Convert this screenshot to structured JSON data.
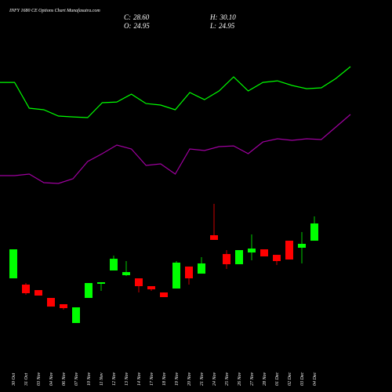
{
  "chart_data": {
    "type": "candlestick",
    "title": "INFY 1680 CE Options Chart Munafasutra.com",
    "readout": [
      {
        "key": "C:",
        "value": 28.6,
        "value_label": "28.60"
      },
      {
        "key": "H:",
        "value": 30.1,
        "value_label": "30.10"
      },
      {
        "key": "O:",
        "value": 24.95,
        "value_label": "24.95"
      },
      {
        "key": "L:",
        "value": 24.95,
        "value_label": "24.95"
      }
    ],
    "categories": [
      "30 Oct",
      "31 Oct",
      "03 Nov",
      "04 Nov",
      "06 Nov",
      "07 Nov",
      "10 Nov",
      "11 Nov",
      "12 Nov",
      "13 Nov",
      "14 Nov",
      "17 Nov",
      "18 Nov",
      "19 Nov",
      "20 Nov",
      "21 Nov",
      "24 Nov",
      "25 Nov",
      "26 Nov",
      "27 Nov",
      "28 Nov",
      "01 Dec",
      "02 Dec",
      "03 Dec",
      "04 Dec"
    ],
    "open": [
      16.99,
      15.66,
      14.5,
      12.84,
      11.51,
      7.53,
      12.84,
      15.83,
      18.65,
      17.65,
      16.99,
      15.33,
      14.0,
      14.83,
      19.48,
      17.98,
      26.11,
      22.13,
      19.97,
      22.46,
      23.13,
      21.96,
      24.95,
      23.46,
      24.95
    ],
    "high": [
      23.13,
      15.99,
      14.5,
      12.84,
      11.51,
      10.85,
      15.99,
      16.16,
      21.8,
      20.64,
      16.99,
      15.33,
      14.0,
      20.64,
      19.48,
      21.47,
      32.75,
      22.96,
      22.96,
      26.28,
      23.13,
      21.96,
      24.95,
      26.78,
      30.1
    ],
    "low": [
      16.99,
      13.5,
      13.34,
      11.01,
      10.35,
      7.53,
      12.84,
      14.33,
      18.65,
      17.48,
      14.0,
      14.33,
      13.01,
      14.83,
      15.66,
      17.98,
      25.12,
      18.98,
      19.97,
      20.8,
      21.63,
      19.81,
      20.97,
      20.14,
      24.95
    ],
    "close": [
      23.13,
      13.84,
      13.34,
      11.01,
      10.68,
      10.85,
      15.99,
      16.16,
      21.13,
      18.31,
      15.33,
      14.66,
      13.01,
      20.31,
      16.99,
      20.14,
      25.12,
      19.97,
      22.96,
      23.29,
      21.63,
      20.64,
      20.97,
      24.29,
      28.6
    ],
    "up_color": "#00ff00",
    "down_color": "#ff0000",
    "series": [
      {
        "color": "#00ff00",
        "values": [
          58.46,
          58.46,
          52.99,
          52.66,
          51.33,
          51.16,
          51.0,
          54.15,
          54.31,
          55.97,
          53.98,
          53.65,
          52.66,
          56.31,
          54.81,
          56.64,
          59.62,
          56.64,
          58.46,
          58.79,
          57.8,
          57.13,
          57.3,
          59.29,
          61.78
        ]
      },
      {
        "color": "#a000a0",
        "values": [
          38.72,
          38.72,
          39.05,
          37.23,
          37.06,
          38.06,
          41.71,
          43.37,
          45.19,
          44.36,
          40.88,
          41.21,
          39.05,
          44.36,
          44.03,
          44.86,
          45.02,
          43.37,
          45.85,
          46.52,
          46.19,
          46.52,
          46.35,
          49.01,
          51.66
        ]
      }
    ],
    "ylim": [
      0,
      70
    ]
  }
}
